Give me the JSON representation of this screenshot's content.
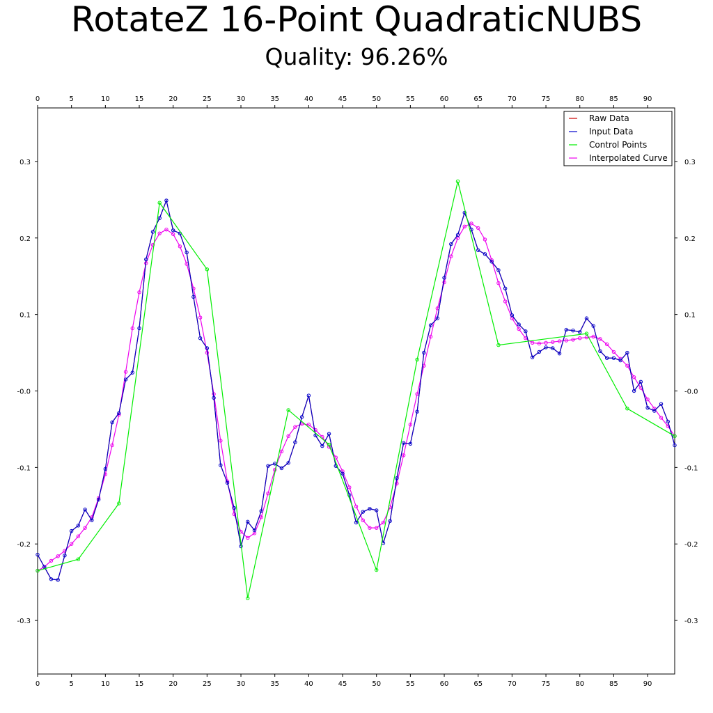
{
  "title": "RotateZ 16-Point QuadraticNUBS",
  "subtitle": "Quality: 96.26%",
  "chart_data": {
    "type": "line",
    "xlim": [
      0,
      94
    ],
    "ylim": [
      -0.37,
      0.37
    ],
    "x_ticks": [
      0,
      5,
      10,
      15,
      20,
      25,
      30,
      35,
      40,
      45,
      50,
      55,
      60,
      65,
      70,
      75,
      80,
      85,
      90
    ],
    "y_ticks": [
      -0.3,
      -0.2,
      -0.1,
      0.0,
      0.1,
      0.2,
      0.3
    ],
    "y_tick_labels": [
      "-0.3",
      "-0.2",
      "-0.1",
      "-0.0",
      "0.1",
      "0.2",
      "0.3"
    ],
    "legend_position": "top-right",
    "grid": false,
    "series": [
      {
        "name": "Raw Data",
        "color": "#cc0000",
        "markers": false,
        "y": [
          -0.214,
          -0.23,
          -0.246,
          -0.247,
          -0.215,
          -0.183,
          -0.176,
          -0.155,
          -0.169,
          -0.142,
          -0.102,
          -0.041,
          -0.029,
          0.015,
          0.024,
          0.082,
          0.172,
          0.208,
          0.226,
          0.249,
          0.21,
          0.206,
          0.181,
          0.123,
          0.069,
          0.056,
          -0.009,
          -0.097,
          -0.12,
          -0.153,
          -0.203,
          -0.171,
          -0.182,
          -0.157,
          -0.098,
          -0.095,
          -0.101,
          -0.094,
          -0.067,
          -0.034,
          -0.006,
          -0.058,
          -0.072,
          -0.056,
          -0.098,
          -0.108,
          -0.136,
          -0.172,
          -0.158,
          -0.154,
          -0.156,
          -0.199,
          -0.17,
          -0.114,
          -0.068,
          -0.069,
          -0.027,
          0.05,
          0.086,
          0.095,
          0.148,
          0.192,
          0.204,
          0.233,
          0.211,
          0.184,
          0.179,
          0.169,
          0.158,
          0.134,
          0.099,
          0.087,
          0.078,
          0.044,
          0.051,
          0.057,
          0.056,
          0.049,
          0.08,
          0.079,
          0.077,
          0.095,
          0.085,
          0.052,
          0.043,
          0.043,
          0.04,
          0.05,
          0.0,
          0.012,
          -0.022,
          -0.026,
          -0.017,
          -0.04,
          -0.071
        ]
      },
      {
        "name": "Input Data",
        "color": "#0000cc",
        "markers": true,
        "y": [
          -0.214,
          -0.23,
          -0.246,
          -0.247,
          -0.215,
          -0.183,
          -0.176,
          -0.155,
          -0.169,
          -0.142,
          -0.102,
          -0.041,
          -0.029,
          0.015,
          0.024,
          0.082,
          0.172,
          0.208,
          0.226,
          0.249,
          0.21,
          0.206,
          0.181,
          0.123,
          0.069,
          0.056,
          -0.009,
          -0.097,
          -0.12,
          -0.153,
          -0.203,
          -0.171,
          -0.182,
          -0.157,
          -0.098,
          -0.095,
          -0.101,
          -0.094,
          -0.067,
          -0.034,
          -0.006,
          -0.058,
          -0.072,
          -0.056,
          -0.098,
          -0.108,
          -0.136,
          -0.172,
          -0.158,
          -0.154,
          -0.156,
          -0.199,
          -0.17,
          -0.114,
          -0.068,
          -0.069,
          -0.027,
          0.05,
          0.086,
          0.095,
          0.148,
          0.192,
          0.204,
          0.233,
          0.211,
          0.184,
          0.179,
          0.169,
          0.158,
          0.134,
          0.099,
          0.087,
          0.078,
          0.044,
          0.051,
          0.057,
          0.056,
          0.049,
          0.08,
          0.079,
          0.077,
          0.095,
          0.085,
          0.052,
          0.043,
          0.043,
          0.04,
          0.05,
          0.0,
          0.012,
          -0.022,
          -0.026,
          -0.017,
          -0.04,
          -0.071
        ]
      },
      {
        "name": "Control Points",
        "color": "#00ee00",
        "markers": true,
        "x": [
          0,
          6,
          12,
          18,
          25,
          31,
          37,
          43,
          50,
          56,
          62,
          68,
          81,
          87,
          94
        ],
        "y": [
          -0.235,
          -0.22,
          -0.147,
          0.246,
          0.159,
          -0.271,
          -0.025,
          -0.07,
          -0.234,
          0.041,
          0.274,
          0.06,
          0.075,
          -0.023,
          -0.059
        ]
      },
      {
        "name": "Interpolated Curve",
        "color": "#ee00ee",
        "markers": true,
        "y": [
          -0.235,
          -0.23,
          -0.222,
          -0.216,
          -0.209,
          -0.2,
          -0.19,
          -0.179,
          -0.165,
          -0.14,
          -0.109,
          -0.071,
          -0.031,
          0.025,
          0.082,
          0.129,
          0.167,
          0.191,
          0.206,
          0.211,
          0.205,
          0.189,
          0.166,
          0.134,
          0.096,
          0.05,
          -0.004,
          -0.065,
          -0.118,
          -0.161,
          -0.184,
          -0.192,
          -0.186,
          -0.165,
          -0.134,
          -0.103,
          -0.079,
          -0.059,
          -0.047,
          -0.043,
          -0.044,
          -0.051,
          -0.06,
          -0.073,
          -0.087,
          -0.105,
          -0.126,
          -0.151,
          -0.169,
          -0.179,
          -0.179,
          -0.172,
          -0.152,
          -0.121,
          -0.084,
          -0.044,
          -0.004,
          0.033,
          0.071,
          0.108,
          0.142,
          0.176,
          0.2,
          0.215,
          0.219,
          0.213,
          0.198,
          0.171,
          0.141,
          0.117,
          0.095,
          0.081,
          0.069,
          0.063,
          0.062,
          0.063,
          0.064,
          0.065,
          0.066,
          0.067,
          0.069,
          0.07,
          0.071,
          0.068,
          0.061,
          0.051,
          0.042,
          0.033,
          0.018,
          0.004,
          -0.011,
          -0.023,
          -0.035,
          -0.046,
          -0.059
        ]
      }
    ]
  }
}
